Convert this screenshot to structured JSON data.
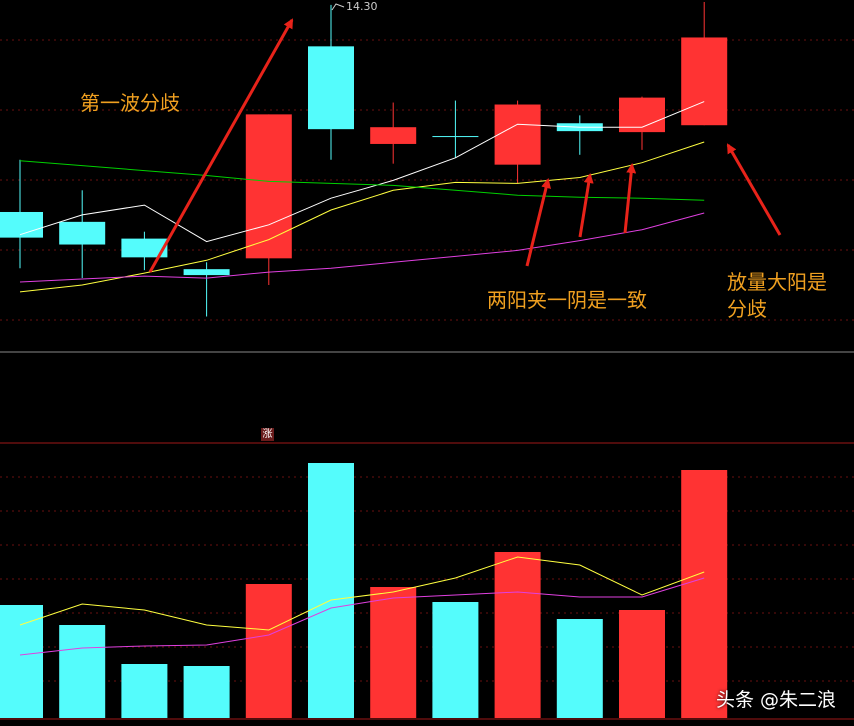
{
  "chart_data": [
    {
      "type": "candlestick",
      "categories": [
        null,
        null,
        null,
        null,
        null,
        null,
        null,
        null,
        null,
        null,
        null,
        null
      ],
      "open": [
        12.2,
        12.1,
        11.93,
        11.62,
        11.73,
        13.88,
        12.89,
        12.97,
        12.68,
        13.1,
        13.01,
        13.08
      ],
      "high": [
        12.73,
        12.42,
        12.0,
        11.69,
        13.19,
        14.3,
        13.31,
        13.33,
        13.33,
        13.18,
        13.37,
        14.33
      ],
      "low": [
        11.63,
        11.53,
        11.61,
        11.14,
        11.46,
        12.73,
        12.69,
        12.75,
        12.49,
        12.78,
        12.83,
        13.08
      ],
      "close": [
        11.94,
        11.87,
        11.74,
        11.56,
        13.19,
        13.04,
        13.06,
        12.96,
        13.29,
        13.02,
        13.36,
        13.97
      ],
      "high_labels": [
        null,
        null,
        null,
        null,
        null,
        "14.30",
        null,
        null,
        null,
        null,
        null,
        null
      ],
      "up_color": "#ff3333",
      "down_color": "#54fcfc",
      "ylim": [
        10.78,
        14.35
      ],
      "lines": [
        {
          "color": "#ffffff",
          "values": [
            11.97,
            12.17,
            12.27,
            11.9,
            12.07,
            12.34,
            12.52,
            12.75,
            13.09,
            13.06,
            13.06,
            13.32
          ]
        },
        {
          "color": "#ffff40",
          "values": [
            11.39,
            11.46,
            11.58,
            11.71,
            11.92,
            12.22,
            12.42,
            12.5,
            12.49,
            12.55,
            12.7,
            12.91
          ]
        },
        {
          "color": "#00d000",
          "values": [
            12.72,
            12.67,
            12.62,
            12.57,
            12.51,
            12.49,
            12.47,
            12.42,
            12.37,
            12.35,
            12.34,
            12.32
          ]
        },
        {
          "color": "#e040e0",
          "values": [
            11.49,
            11.52,
            11.55,
            11.53,
            11.59,
            11.63,
            11.69,
            11.75,
            11.81,
            11.91,
            12.02,
            12.19
          ]
        }
      ],
      "annotations": [
        "第一波分歧",
        "两阳夹一阴是一致",
        "放量大阳是分歧"
      ]
    },
    {
      "type": "bar",
      "categories": [
        null,
        null,
        null,
        null,
        null,
        null,
        null,
        null,
        null,
        null,
        null,
        null
      ],
      "values": [
        113,
        93,
        54,
        52,
        134,
        255,
        131,
        116,
        166,
        99,
        108,
        248
      ],
      "colors": [
        "#54fcfc",
        "#54fcfc",
        "#54fcfc",
        "#54fcfc",
        "#ff3333",
        "#54fcfc",
        "#ff3333",
        "#54fcfc",
        "#ff3333",
        "#54fcfc",
        "#ff3333",
        "#ff3333"
      ],
      "ylim": [
        0,
        275
      ],
      "lines": [
        {
          "color": "#ffff40",
          "values": [
            93,
            114,
            108,
            93,
            88,
            118,
            126,
            140,
            161,
            153,
            123,
            146
          ]
        },
        {
          "color": "#e040e0",
          "values": [
            63,
            70,
            72,
            73,
            83,
            110,
            120,
            123,
            126,
            121,
            121,
            140
          ]
        }
      ],
      "badge": "涨"
    }
  ],
  "watermark": "头条 @朱二浪"
}
